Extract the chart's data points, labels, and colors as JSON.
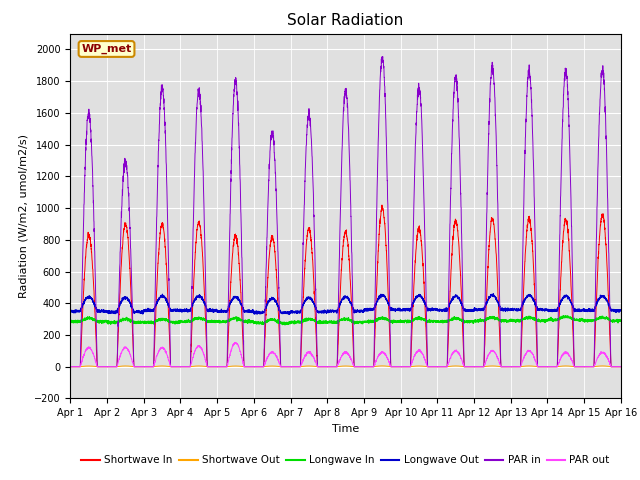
{
  "title": "Solar Radiation",
  "xlabel": "Time",
  "ylabel": "Radiation (W/m2, umol/m2/s)",
  "ylim": [
    -200,
    2100
  ],
  "yticks": [
    -200,
    0,
    200,
    400,
    600,
    800,
    1000,
    1200,
    1400,
    1600,
    1800,
    2000
  ],
  "plot_bg_color": "#e0e0e0",
  "fig_bg_color": "#ffffff",
  "annotation": "WP_met",
  "series_colors": {
    "Shortwave In": "#ff0000",
    "Shortwave Out": "#ffa500",
    "Longwave In": "#00dd00",
    "Longwave Out": "#0000cc",
    "PAR in": "#8800cc",
    "PAR out": "#ff44ff"
  },
  "xticklabels": [
    "Apr 1",
    "Apr 2",
    "Apr 3",
    "Apr 4",
    "Apr 5",
    "Apr 6",
    "Apr 7",
    "Apr 8",
    "Apr 9",
    "Apr 10",
    "Apr 11",
    "Apr 12",
    "Apr 13",
    "Apr 14",
    "Apr 15",
    "Apr 16"
  ],
  "n_days": 15,
  "pts_per_day": 288,
  "sw_in_peaks": [
    830,
    900,
    900,
    910,
    830,
    820,
    870,
    850,
    1000,
    870,
    920,
    930,
    930,
    930,
    960
  ],
  "par_in_peaks": [
    1600,
    1300,
    1760,
    1740,
    1800,
    1470,
    1590,
    1740,
    1950,
    1760,
    1830,
    1890,
    1860,
    1860,
    1870
  ],
  "lw_in_base": [
    285,
    280,
    280,
    285,
    285,
    275,
    280,
    280,
    285,
    285,
    285,
    290,
    290,
    295,
    290
  ],
  "lw_out_base": [
    350,
    345,
    355,
    355,
    350,
    340,
    345,
    350,
    360,
    360,
    355,
    360,
    360,
    355,
    355
  ],
  "par_out_peaks": [
    120,
    120,
    120,
    130,
    150,
    90,
    90,
    90,
    90,
    100,
    100,
    100,
    100,
    90,
    90
  ],
  "day_start": 0.27,
  "day_end": 0.73
}
